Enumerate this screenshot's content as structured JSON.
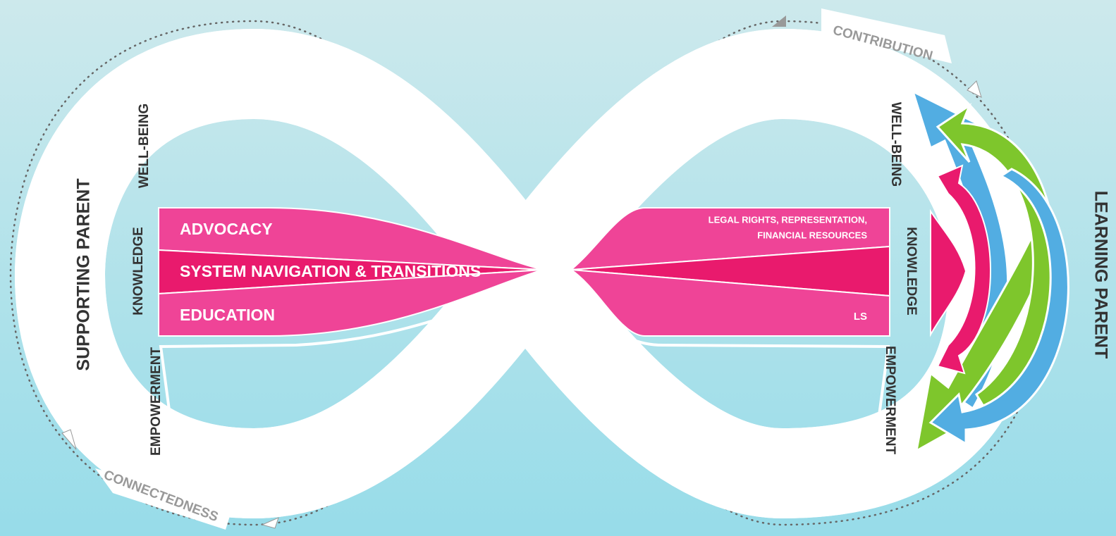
{
  "outer_labels": {
    "top": "CONTRIBUTION",
    "bottom": "CONNECTEDNESS"
  },
  "left": {
    "title": "SUPPORTING PARENT",
    "dimensions": [
      "WELL-BEING",
      "KNOWLEDGE",
      "EMPOWERMENT"
    ],
    "bands": [
      "ADVOCACY",
      "SYSTEM NAVIGATION & TRANSITIONS",
      "EDUCATION"
    ]
  },
  "right": {
    "title": "LEARNING PARENT",
    "dimensions": [
      "WELL-BEING",
      "KNOWLEDGE",
      "EMPOWERMENT"
    ],
    "band_notes": {
      "top": [
        "LEGAL RIGHTS, REPRESENTATION,",
        "FINANCIAL RESOURCES"
      ],
      "bottom": "LS"
    }
  }
}
